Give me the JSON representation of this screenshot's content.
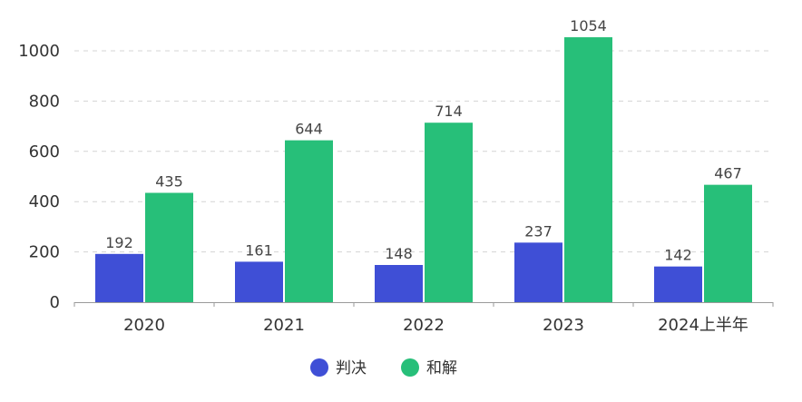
{
  "chart_data": {
    "type": "bar",
    "categories": [
      "2020",
      "2021",
      "2022",
      "2023",
      "2024上半年"
    ],
    "series": [
      {
        "name": "判决",
        "values": [
          192,
          161,
          148,
          237,
          142
        ],
        "color": "#3f4fd6"
      },
      {
        "name": "和解",
        "values": [
          435,
          644,
          714,
          1054,
          467
        ],
        "color": "#27bf79"
      }
    ],
    "ylim": [
      0,
      1100
    ],
    "yticks": [
      0,
      200,
      400,
      600,
      800,
      1000
    ],
    "grid": true,
    "legend": "bottom-center",
    "title": "",
    "xlabel": "",
    "ylabel": ""
  }
}
